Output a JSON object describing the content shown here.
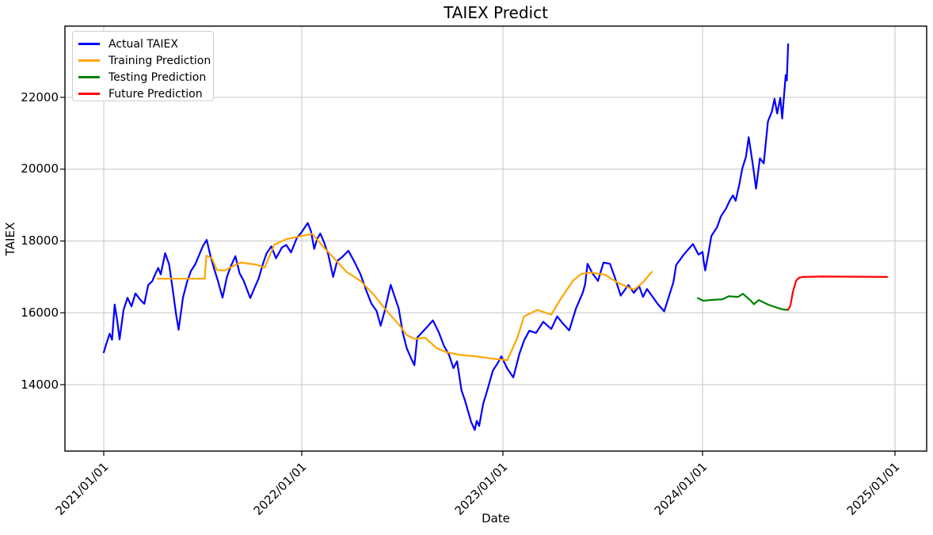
{
  "title": "TAIEX Predict",
  "axes": {
    "x_label": "Date",
    "y_label": "TAIEX",
    "x_ticks": [
      "2021/01/01",
      "2022/01/01",
      "2023/01/01",
      "2024/01/01",
      "2025/01/01"
    ],
    "y_ticks": [
      "22000",
      "20000",
      "18000",
      "16000",
      "14000"
    ]
  },
  "legend": [
    {
      "label": "Actual TAIEX",
      "color": "#0000ff"
    },
    {
      "label": "Training Prediction",
      "color": "#ffa500"
    },
    {
      "label": "Testing Prediction",
      "color": "#008000"
    },
    {
      "label": "Future Prediction",
      "color": "#ff0000"
    }
  ],
  "style": {
    "grid_color": "#c6c6c6",
    "spine_color": "#000000",
    "background": "#ffffff"
  },
  "chart_data": {
    "type": "line",
    "title": "TAIEX Predict",
    "xlabel": "Date",
    "ylabel": "TAIEX",
    "x_unit": "decimal_year",
    "xlim": [
      2020.804,
      2025.165
    ],
    "ylim": [
      12150,
      23985
    ],
    "x_tick_years": [
      2021,
      2022,
      2023,
      2024,
      2025
    ],
    "x_tick_labels": [
      "2021/01/01",
      "2022/01/01",
      "2023/01/01",
      "2024/01/01",
      "2025/01/01"
    ],
    "y_tick_values": [
      14000,
      16000,
      18000,
      20000,
      22000
    ],
    "grid": true,
    "legend_position": "upper left",
    "series": [
      {
        "name": "Actual TAIEX",
        "color": "#0000ff",
        "points": [
          [
            2021.0,
            14900
          ],
          [
            2021.012,
            15120
          ],
          [
            2021.03,
            15420
          ],
          [
            2021.042,
            15250
          ],
          [
            2021.055,
            16230
          ],
          [
            2021.068,
            15780
          ],
          [
            2021.08,
            15260
          ],
          [
            2021.1,
            16080
          ],
          [
            2021.12,
            16420
          ],
          [
            2021.14,
            16180
          ],
          [
            2021.16,
            16540
          ],
          [
            2021.185,
            16360
          ],
          [
            2021.205,
            16250
          ],
          [
            2021.225,
            16780
          ],
          [
            2021.245,
            16880
          ],
          [
            2021.262,
            17100
          ],
          [
            2021.275,
            17250
          ],
          [
            2021.288,
            17070
          ],
          [
            2021.31,
            17660
          ],
          [
            2021.33,
            17350
          ],
          [
            2021.35,
            16580
          ],
          [
            2021.365,
            15960
          ],
          [
            2021.378,
            15530
          ],
          [
            2021.4,
            16420
          ],
          [
            2021.42,
            16850
          ],
          [
            2021.44,
            17160
          ],
          [
            2021.462,
            17350
          ],
          [
            2021.478,
            17560
          ],
          [
            2021.5,
            17850
          ],
          [
            2021.52,
            18030
          ],
          [
            2021.538,
            17600
          ],
          [
            2021.556,
            17250
          ],
          [
            2021.576,
            16900
          ],
          [
            2021.6,
            16420
          ],
          [
            2021.622,
            17000
          ],
          [
            2021.642,
            17300
          ],
          [
            2021.665,
            17580
          ],
          [
            2021.686,
            17100
          ],
          [
            2021.706,
            16900
          ],
          [
            2021.74,
            16410
          ],
          [
            2021.762,
            16700
          ],
          [
            2021.782,
            16950
          ],
          [
            2021.806,
            17400
          ],
          [
            2021.822,
            17650
          ],
          [
            2021.846,
            17850
          ],
          [
            2021.87,
            17520
          ],
          [
            2021.9,
            17820
          ],
          [
            2021.922,
            17890
          ],
          [
            2021.946,
            17680
          ],
          [
            2021.976,
            18100
          ],
          [
            2021.996,
            18220
          ],
          [
            2022.03,
            18500
          ],
          [
            2022.046,
            18270
          ],
          [
            2022.062,
            17780
          ],
          [
            2022.076,
            18050
          ],
          [
            2022.092,
            18210
          ],
          [
            2022.112,
            17950
          ],
          [
            2022.132,
            17620
          ],
          [
            2022.156,
            17000
          ],
          [
            2022.176,
            17440
          ],
          [
            2022.202,
            17560
          ],
          [
            2022.232,
            17730
          ],
          [
            2022.262,
            17420
          ],
          [
            2022.292,
            17070
          ],
          [
            2022.322,
            16600
          ],
          [
            2022.346,
            16260
          ],
          [
            2022.372,
            16050
          ],
          [
            2022.392,
            15640
          ],
          [
            2022.412,
            16040
          ],
          [
            2022.442,
            16780
          ],
          [
            2022.462,
            16450
          ],
          [
            2022.482,
            16120
          ],
          [
            2022.502,
            15450
          ],
          [
            2022.522,
            15010
          ],
          [
            2022.546,
            14700
          ],
          [
            2022.56,
            14540
          ],
          [
            2022.574,
            15310
          ],
          [
            2022.592,
            15420
          ],
          [
            2022.622,
            15600
          ],
          [
            2022.652,
            15790
          ],
          [
            2022.682,
            15450
          ],
          [
            2022.706,
            15090
          ],
          [
            2022.732,
            14830
          ],
          [
            2022.754,
            14460
          ],
          [
            2022.772,
            14650
          ],
          [
            2022.794,
            13840
          ],
          [
            2022.812,
            13550
          ],
          [
            2022.842,
            12960
          ],
          [
            2022.86,
            12740
          ],
          [
            2022.87,
            12990
          ],
          [
            2022.882,
            12850
          ],
          [
            2022.902,
            13470
          ],
          [
            2022.922,
            13840
          ],
          [
            2022.95,
            14390
          ],
          [
            2022.974,
            14600
          ],
          [
            2022.992,
            14790
          ],
          [
            2023.022,
            14450
          ],
          [
            2023.052,
            14200
          ],
          [
            2023.082,
            14850
          ],
          [
            2023.106,
            15230
          ],
          [
            2023.132,
            15500
          ],
          [
            2023.166,
            15440
          ],
          [
            2023.202,
            15750
          ],
          [
            2023.242,
            15550
          ],
          [
            2023.272,
            15900
          ],
          [
            2023.302,
            15690
          ],
          [
            2023.332,
            15510
          ],
          [
            2023.366,
            16120
          ],
          [
            2023.4,
            16560
          ],
          [
            2023.412,
            16800
          ],
          [
            2023.424,
            17365
          ],
          [
            2023.448,
            17100
          ],
          [
            2023.476,
            16890
          ],
          [
            2023.504,
            17400
          ],
          [
            2023.536,
            17365
          ],
          [
            2023.56,
            17000
          ],
          [
            2023.59,
            16480
          ],
          [
            2023.628,
            16775
          ],
          [
            2023.656,
            16555
          ],
          [
            2023.682,
            16745
          ],
          [
            2023.702,
            16445
          ],
          [
            2023.722,
            16665
          ],
          [
            2023.774,
            16260
          ],
          [
            2023.808,
            16040
          ],
          [
            2023.854,
            16850
          ],
          [
            2023.868,
            17330
          ],
          [
            2023.906,
            17620
          ],
          [
            2023.952,
            17915
          ],
          [
            2023.98,
            17620
          ],
          [
            2024.0,
            17695
          ],
          [
            2024.006,
            17440
          ],
          [
            2024.014,
            17180
          ],
          [
            2024.032,
            17700
          ],
          [
            2024.046,
            18140
          ],
          [
            2024.076,
            18390
          ],
          [
            2024.096,
            18690
          ],
          [
            2024.122,
            18900
          ],
          [
            2024.142,
            19130
          ],
          [
            2024.158,
            19270
          ],
          [
            2024.172,
            19120
          ],
          [
            2024.192,
            19600
          ],
          [
            2024.206,
            20010
          ],
          [
            2024.226,
            20350
          ],
          [
            2024.24,
            20890
          ],
          [
            2024.262,
            20100
          ],
          [
            2024.278,
            19460
          ],
          [
            2024.298,
            20300
          ],
          [
            2024.318,
            20160
          ],
          [
            2024.34,
            21330
          ],
          [
            2024.36,
            21600
          ],
          [
            2024.374,
            21960
          ],
          [
            2024.388,
            21550
          ],
          [
            2024.404,
            21990
          ],
          [
            2024.414,
            21410
          ],
          [
            2024.424,
            22070
          ],
          [
            2024.432,
            22620
          ],
          [
            2024.438,
            22470
          ],
          [
            2024.445,
            23480
          ]
        ]
      },
      {
        "name": "Training Prediction",
        "color": "#ffa500",
        "points": [
          [
            2021.272,
            16950
          ],
          [
            2021.51,
            16950
          ],
          [
            2021.518,
            17590
          ],
          [
            2021.546,
            17520
          ],
          [
            2021.572,
            17190
          ],
          [
            2021.612,
            17180
          ],
          [
            2021.652,
            17300
          ],
          [
            2021.692,
            17400
          ],
          [
            2021.732,
            17370
          ],
          [
            2021.772,
            17340
          ],
          [
            2021.812,
            17260
          ],
          [
            2021.862,
            17900
          ],
          [
            2021.922,
            18050
          ],
          [
            2021.992,
            18130
          ],
          [
            2022.052,
            18200
          ],
          [
            2022.112,
            17810
          ],
          [
            2022.172,
            17450
          ],
          [
            2022.222,
            17140
          ],
          [
            2022.292,
            16890
          ],
          [
            2022.362,
            16480
          ],
          [
            2022.412,
            16120
          ],
          [
            2022.482,
            15680
          ],
          [
            2022.522,
            15380
          ],
          [
            2022.562,
            15270
          ],
          [
            2022.612,
            15310
          ],
          [
            2022.672,
            15010
          ],
          [
            2022.722,
            14900
          ],
          [
            2022.782,
            14830
          ],
          [
            2022.862,
            14790
          ],
          [
            2022.952,
            14720
          ],
          [
            2023.022,
            14680
          ],
          [
            2023.072,
            15300
          ],
          [
            2023.106,
            15900
          ],
          [
            2023.172,
            16080
          ],
          [
            2023.242,
            15950
          ],
          [
            2023.292,
            16410
          ],
          [
            2023.352,
            16900
          ],
          [
            2023.392,
            17080
          ],
          [
            2023.442,
            17120
          ],
          [
            2023.512,
            17060
          ],
          [
            2023.572,
            16850
          ],
          [
            2023.656,
            16640
          ],
          [
            2023.702,
            16850
          ],
          [
            2023.746,
            17140
          ]
        ]
      },
      {
        "name": "Testing Prediction",
        "color": "#008000",
        "points": [
          [
            2023.976,
            16410
          ],
          [
            2024.004,
            16335
          ],
          [
            2024.053,
            16360
          ],
          [
            2024.103,
            16375
          ],
          [
            2024.136,
            16460
          ],
          [
            2024.185,
            16445
          ],
          [
            2024.21,
            16530
          ],
          [
            2024.251,
            16335
          ],
          [
            2024.267,
            16240
          ],
          [
            2024.292,
            16355
          ],
          [
            2024.31,
            16310
          ],
          [
            2024.342,
            16225
          ],
          [
            2024.383,
            16150
          ],
          [
            2024.416,
            16095
          ],
          [
            2024.444,
            16080
          ]
        ]
      },
      {
        "name": "Future Prediction",
        "color": "#ff0000",
        "points": [
          [
            2024.444,
            16080
          ],
          [
            2024.456,
            16190
          ],
          [
            2024.47,
            16590
          ],
          [
            2024.486,
            16890
          ],
          [
            2024.5,
            16975
          ],
          [
            2024.52,
            17000
          ],
          [
            2024.62,
            17010
          ],
          [
            2024.78,
            17005
          ],
          [
            2024.959,
            17000
          ]
        ]
      }
    ]
  }
}
